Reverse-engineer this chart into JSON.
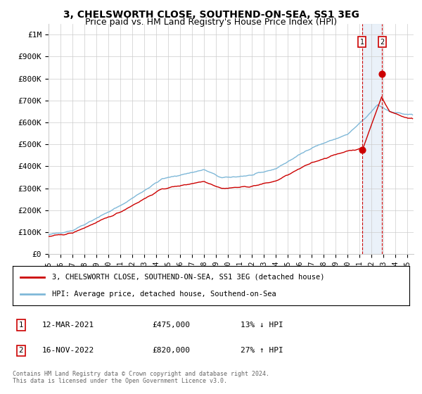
{
  "title": "3, CHELSWORTH CLOSE, SOUTHEND-ON-SEA, SS1 3EG",
  "subtitle": "Price paid vs. HM Land Registry's House Price Index (HPI)",
  "legend_line1": "3, CHELSWORTH CLOSE, SOUTHEND-ON-SEA, SS1 3EG (detached house)",
  "legend_line2": "HPI: Average price, detached house, Southend-on-Sea",
  "footnote": "Contains HM Land Registry data © Crown copyright and database right 2024.\nThis data is licensed under the Open Government Licence v3.0.",
  "transactions": [
    {
      "label": "1",
      "date": "12-MAR-2021",
      "price": 475000,
      "hpi_pct": "13% ↓ HPI",
      "x": 2021.19
    },
    {
      "label": "2",
      "date": "16-NOV-2022",
      "price": 820000,
      "hpi_pct": "27% ↑ HPI",
      "x": 2022.88
    }
  ],
  "hpi_color": "#7fb8d8",
  "price_color": "#cc0000",
  "transaction_box_color": "#cc0000",
  "background_shade_color": "#dce9f5",
  "ylim": [
    0,
    1050000
  ],
  "xlim_start": 1995.0,
  "xlim_end": 2025.5,
  "yticks": [
    0,
    100000,
    200000,
    300000,
    400000,
    500000,
    600000,
    700000,
    800000,
    900000,
    1000000
  ],
  "ytick_labels": [
    "£0",
    "£100K",
    "£200K",
    "£300K",
    "£400K",
    "£500K",
    "£600K",
    "£700K",
    "£800K",
    "£900K",
    "£1M"
  ]
}
